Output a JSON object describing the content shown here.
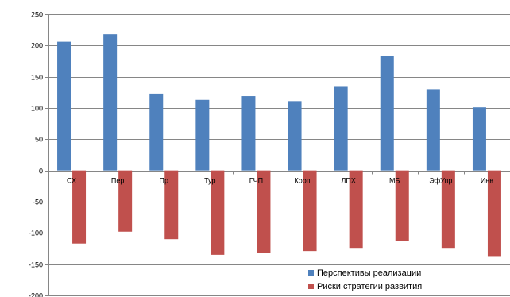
{
  "chart_data": {
    "type": "bar",
    "categories": [
      "СХ",
      "Пер",
      "Пр",
      "Тур",
      "ГЧП",
      "Кооп",
      "ЛПХ",
      "МБ",
      "ЭфУпр",
      "Инв"
    ],
    "series": [
      {
        "name": "Перспективы реализации",
        "color": "#4f81bd",
        "values": [
          206,
          218,
          123,
          113,
          119,
          111,
          135,
          183,
          130,
          101
        ]
      },
      {
        "name": "Риски стратегии развития",
        "color": "#c0504d",
        "values": [
          -117,
          -98,
          -110,
          -135,
          -132,
          -129,
          -124,
          -113,
          -124,
          -137
        ]
      }
    ],
    "ylim": [
      -200,
      250
    ],
    "yticks": [
      -200,
      -150,
      -100,
      -50,
      0,
      50,
      100,
      150,
      200,
      250
    ],
    "title": "",
    "xlabel": "",
    "ylabel": "",
    "grid": true,
    "legend_position": "bottom-right"
  }
}
